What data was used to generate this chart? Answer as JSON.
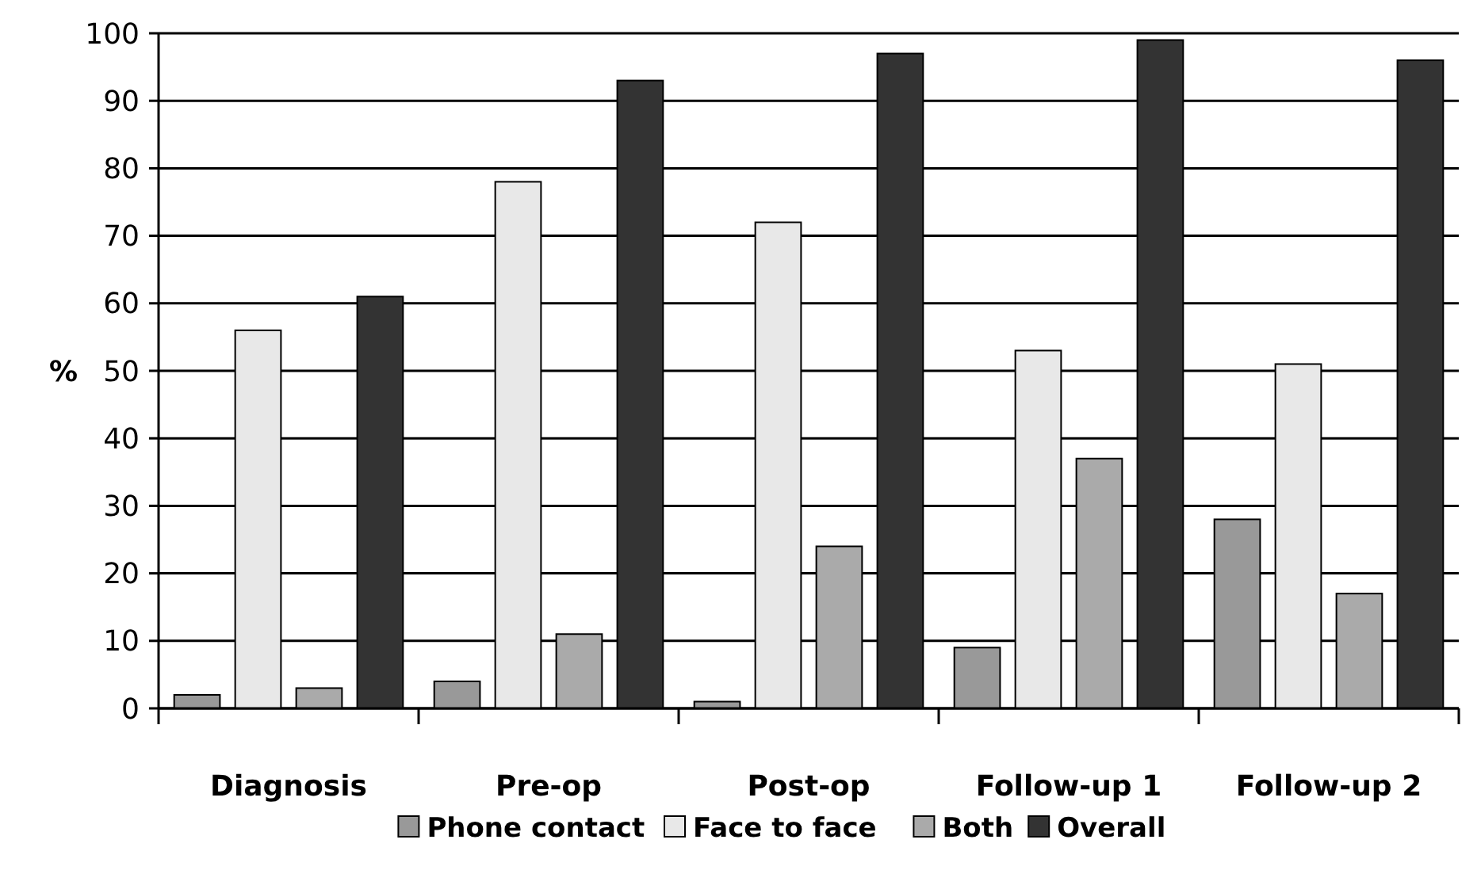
{
  "chart_data": {
    "type": "bar",
    "ylabel": "%",
    "categories": [
      "Diagnosis",
      "Pre-op",
      "Post-op",
      "Follow-up 1",
      "Follow-up 2"
    ],
    "series": [
      {
        "name": "Phone contact",
        "color": "#999999",
        "values": [
          2,
          4,
          1,
          9,
          28
        ]
      },
      {
        "name": "Face to face",
        "color": "#e8e8e8",
        "values": [
          56,
          78,
          72,
          53,
          51
        ]
      },
      {
        "name": "Both",
        "color": "#aaaaaa",
        "values": [
          3,
          11,
          24,
          37,
          17
        ]
      },
      {
        "name": "Overall",
        "color": "#333333",
        "values": [
          61,
          93,
          97,
          99,
          96
        ]
      }
    ],
    "ylim": [
      0,
      100
    ],
    "yticks": [
      0,
      10,
      20,
      30,
      40,
      50,
      60,
      70,
      80,
      90,
      100
    ],
    "grid": "y",
    "legend": "bottom"
  }
}
